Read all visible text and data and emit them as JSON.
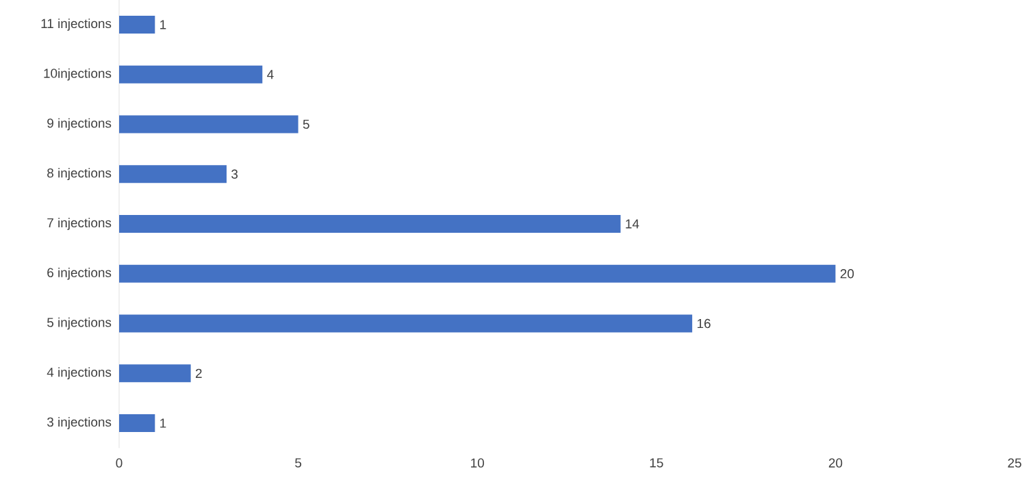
{
  "chart_data": {
    "type": "bar",
    "orientation": "horizontal",
    "categories": [
      "11 injections",
      "10injections",
      "9 injections",
      "8 injections",
      "7 injections",
      "6 injections",
      "5 injections",
      "4 injections",
      "3 injections"
    ],
    "values": [
      1,
      4,
      5,
      3,
      14,
      20,
      16,
      2,
      1
    ],
    "color": "#4472c4",
    "xlim": [
      0,
      25
    ],
    "xticks": [
      0,
      5,
      10,
      15,
      20,
      25
    ],
    "data_labels": true,
    "grid": false
  }
}
